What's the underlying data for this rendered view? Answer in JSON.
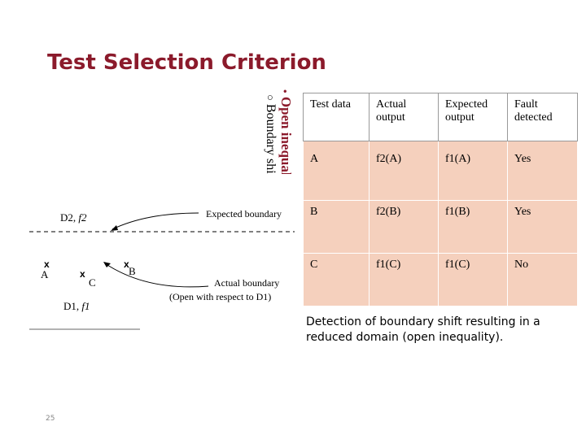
{
  "slide": {
    "title": "Test Selection Criterion",
    "bullets": {
      "level1": "Open inequality boundary",
      "level2": "Boundary shift resulting in a reduced domain",
      "level1_marker": "•",
      "level2_marker": "○"
    },
    "diagram": {
      "d2_label": "D2,",
      "d2_func": "f2",
      "expected_boundary": "Expected boundary",
      "actual_boundary": "Actual boundary",
      "open_note": "(Open with respect to D1)",
      "d1_label": "D1,",
      "d1_func": "f1",
      "point_a": "A",
      "point_b": "B",
      "point_c": "C",
      "x_mark": "x"
    },
    "table": {
      "headers": [
        "Test data",
        "Actual output",
        "Expected output",
        "Fault detected"
      ],
      "rows": [
        [
          "A",
          "f2(A)",
          "f1(A)",
          "Yes"
        ],
        [
          "B",
          "f2(B)",
          "f1(B)",
          "Yes"
        ],
        [
          "C",
          "f1(C)",
          "f1(C)",
          "No"
        ]
      ]
    },
    "caption": "Detection of boundary shift resulting in a reduced domain (open inequality).",
    "page_number": "25",
    "colors": {
      "title": "#8b1a2b",
      "row_fill": "#f5d0bd"
    }
  }
}
